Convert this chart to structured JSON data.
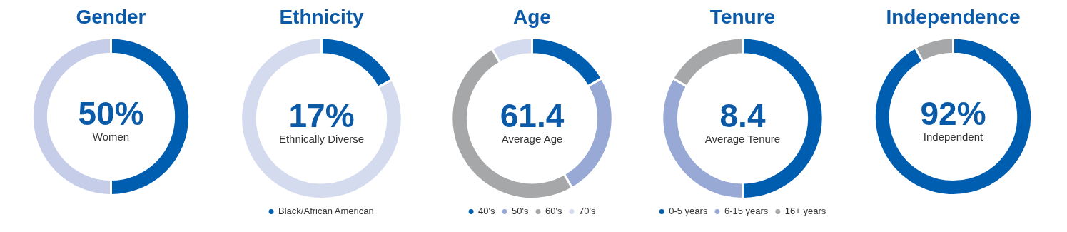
{
  "chart_data": [
    {
      "type": "donut",
      "title": "Gender",
      "categories": [
        null,
        null
      ],
      "values": [
        50,
        50
      ],
      "colors": [
        "#005eb0",
        "#c5cde8"
      ],
      "annotations": [
        "50%",
        "Women"
      ]
    },
    {
      "type": "donut",
      "title": "Ethnicity",
      "categories": [
        "Black/African American",
        null
      ],
      "values": [
        17,
        83
      ],
      "colors": [
        "#005eb0",
        "#d5dbee"
      ],
      "annotations": [
        "17%",
        "Ethnically Diverse"
      ],
      "legend": "bottom"
    },
    {
      "type": "donut",
      "title": "Age",
      "categories": [
        "40's",
        "50's",
        "60's",
        "70's"
      ],
      "values": [
        16.7,
        25,
        50,
        8.3
      ],
      "colors": [
        "#005eb0",
        "#98a9d6",
        "#a6a7a9",
        "#d5dbee"
      ],
      "annotations": [
        "61.4",
        "Average Age"
      ],
      "legend": "bottom"
    },
    {
      "type": "donut",
      "title": "Tenure",
      "categories": [
        "0-5 years",
        "6-15 years",
        "16+ years"
      ],
      "values": [
        50,
        33.3,
        16.7
      ],
      "colors": [
        "#005eb0",
        "#98a9d6",
        "#a6a7a9"
      ],
      "annotations": [
        "8.4",
        "Average Tenure"
      ],
      "legend": "bottom"
    },
    {
      "type": "donut",
      "title": "Independence",
      "categories": [
        null,
        null
      ],
      "values": [
        92,
        8
      ],
      "colors": [
        "#005eb0",
        "#a6a7a9"
      ],
      "annotations": [
        "92%",
        "Independent"
      ]
    }
  ]
}
